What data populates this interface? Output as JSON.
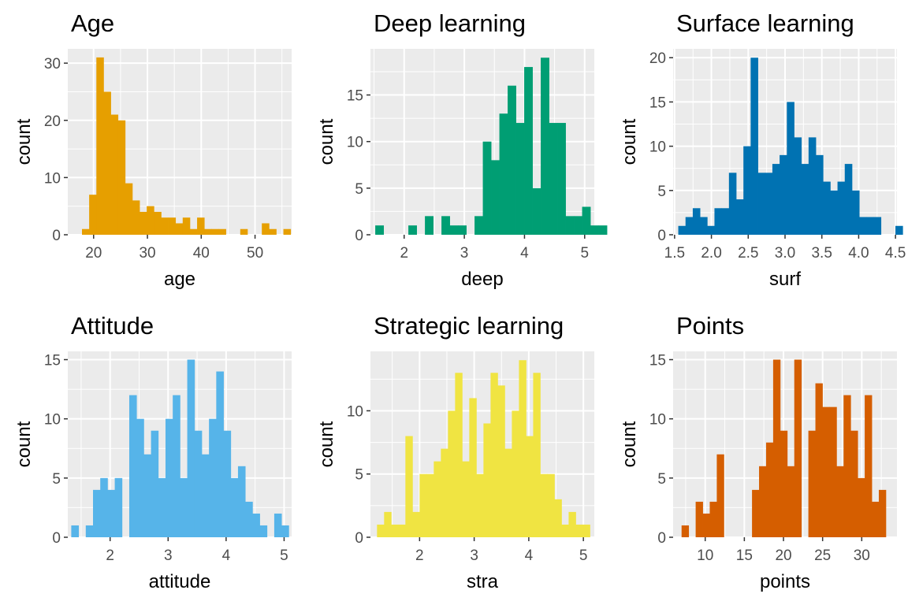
{
  "chart_data": [
    {
      "type": "bar",
      "title": "Age",
      "xlabel": "age",
      "ylabel": "count",
      "fill": "#E69F00",
      "panel_bg": "#EBEBEB",
      "grid": true,
      "xlim": [
        15.2,
        56.8
      ],
      "ylim": [
        0,
        32.5
      ],
      "xticks": [
        20,
        30,
        40,
        50
      ],
      "yticks": [
        0,
        10,
        20,
        30
      ],
      "bin_start": 16.5,
      "bin_width": 1.337,
      "values": [
        0,
        1,
        7,
        31,
        25,
        21,
        20,
        9,
        6,
        4,
        5,
        4,
        3,
        3,
        2,
        3,
        1,
        3,
        1,
        1,
        1,
        0,
        0,
        1,
        0,
        0,
        2,
        1,
        0,
        1,
        0
      ]
    },
    {
      "type": "bar",
      "title": "Deep learning",
      "xlabel": "deep",
      "ylabel": "count",
      "fill": "#009E73",
      "panel_bg": "#EBEBEB",
      "grid": true,
      "xlim": [
        1.44,
        5.16
      ],
      "ylim": [
        0,
        19.95
      ],
      "xticks": [
        2,
        3,
        4,
        5
      ],
      "yticks": [
        0,
        5,
        10,
        15
      ],
      "bin_start": 1.52,
      "bin_width": 0.1375,
      "values": [
        1,
        0,
        0,
        0,
        1,
        0,
        2,
        0,
        2,
        1,
        1,
        0,
        2,
        10,
        8,
        13,
        16,
        12,
        18,
        5,
        19,
        12,
        12,
        2,
        2,
        3,
        1,
        1,
        0,
        0
      ]
    },
    {
      "type": "bar",
      "title": "Surface learning",
      "xlabel": "surf",
      "ylabel": "count",
      "fill": "#0072B2",
      "panel_bg": "#EBEBEB",
      "grid": true,
      "xlim": [
        1.48,
        4.52
      ],
      "ylim": [
        0,
        21
      ],
      "xticks": [
        1.5,
        2.0,
        2.5,
        3.0,
        3.5,
        4.0,
        4.5
      ],
      "yticks": [
        0,
        5,
        10,
        15,
        20
      ],
      "bin_start": 1.55,
      "bin_width": 0.0983,
      "values": [
        1,
        2,
        3,
        2,
        1,
        3,
        3,
        7,
        4,
        10,
        20,
        7,
        7,
        8,
        9,
        15,
        11,
        8,
        11,
        9,
        6,
        5,
        6,
        8,
        5,
        2,
        2,
        2,
        0,
        0,
        1
      ]
    },
    {
      "type": "bar",
      "title": "Attitude",
      "xlabel": "attitude",
      "ylabel": "count",
      "fill": "#56B4E9",
      "panel_bg": "#EBEBEB",
      "grid": true,
      "xlim": [
        1.27,
        5.13
      ],
      "ylim": [
        0,
        15.7
      ],
      "xticks": [
        2,
        3,
        4,
        5
      ],
      "yticks": [
        0,
        5,
        10,
        15
      ],
      "bin_start": 1.33,
      "bin_width": 0.125,
      "values": [
        1,
        0,
        1,
        4,
        5,
        4,
        5,
        0,
        12,
        10,
        7,
        9,
        5,
        10,
        12,
        5,
        15,
        9,
        7,
        10,
        14,
        9,
        5,
        6,
        3,
        2,
        1,
        0,
        2,
        1
      ]
    },
    {
      "type": "bar",
      "title": "Strategic learning",
      "xlabel": "stra",
      "ylabel": "count",
      "fill": "#F0E442",
      "panel_bg": "#EBEBEB",
      "grid": true,
      "xlim": [
        1.1,
        5.2
      ],
      "ylim": [
        0,
        14.7
      ],
      "xticks": [
        2,
        3,
        4,
        5
      ],
      "yticks": [
        0,
        5,
        10
      ],
      "bin_start": 1.22,
      "bin_width": 0.13,
      "values": [
        1,
        2,
        1,
        1,
        8,
        2,
        5,
        5,
        6,
        7,
        10,
        13,
        6,
        11,
        5,
        9,
        13,
        12,
        7,
        10,
        14,
        8,
        13,
        5,
        5,
        3,
        1,
        2,
        1,
        1
      ]
    },
    {
      "type": "bar",
      "title": "Points",
      "xlabel": "points",
      "ylabel": "count",
      "fill": "#D55E00",
      "panel_bg": "#EBEBEB",
      "grid": true,
      "xlim": [
        5.9,
        34.5
      ],
      "ylim": [
        0,
        15.7
      ],
      "xticks": [
        10,
        15,
        20,
        25,
        30
      ],
      "yticks": [
        0,
        5,
        10,
        15
      ],
      "bin_start": 6.98,
      "bin_width": 0.9,
      "values": [
        1,
        0,
        3,
        2,
        3,
        7,
        0,
        0,
        0,
        0,
        4,
        6,
        8,
        15,
        9,
        6,
        15,
        0,
        9,
        13,
        11,
        11,
        6,
        12,
        9,
        5,
        12,
        3,
        4,
        0
      ]
    }
  ]
}
